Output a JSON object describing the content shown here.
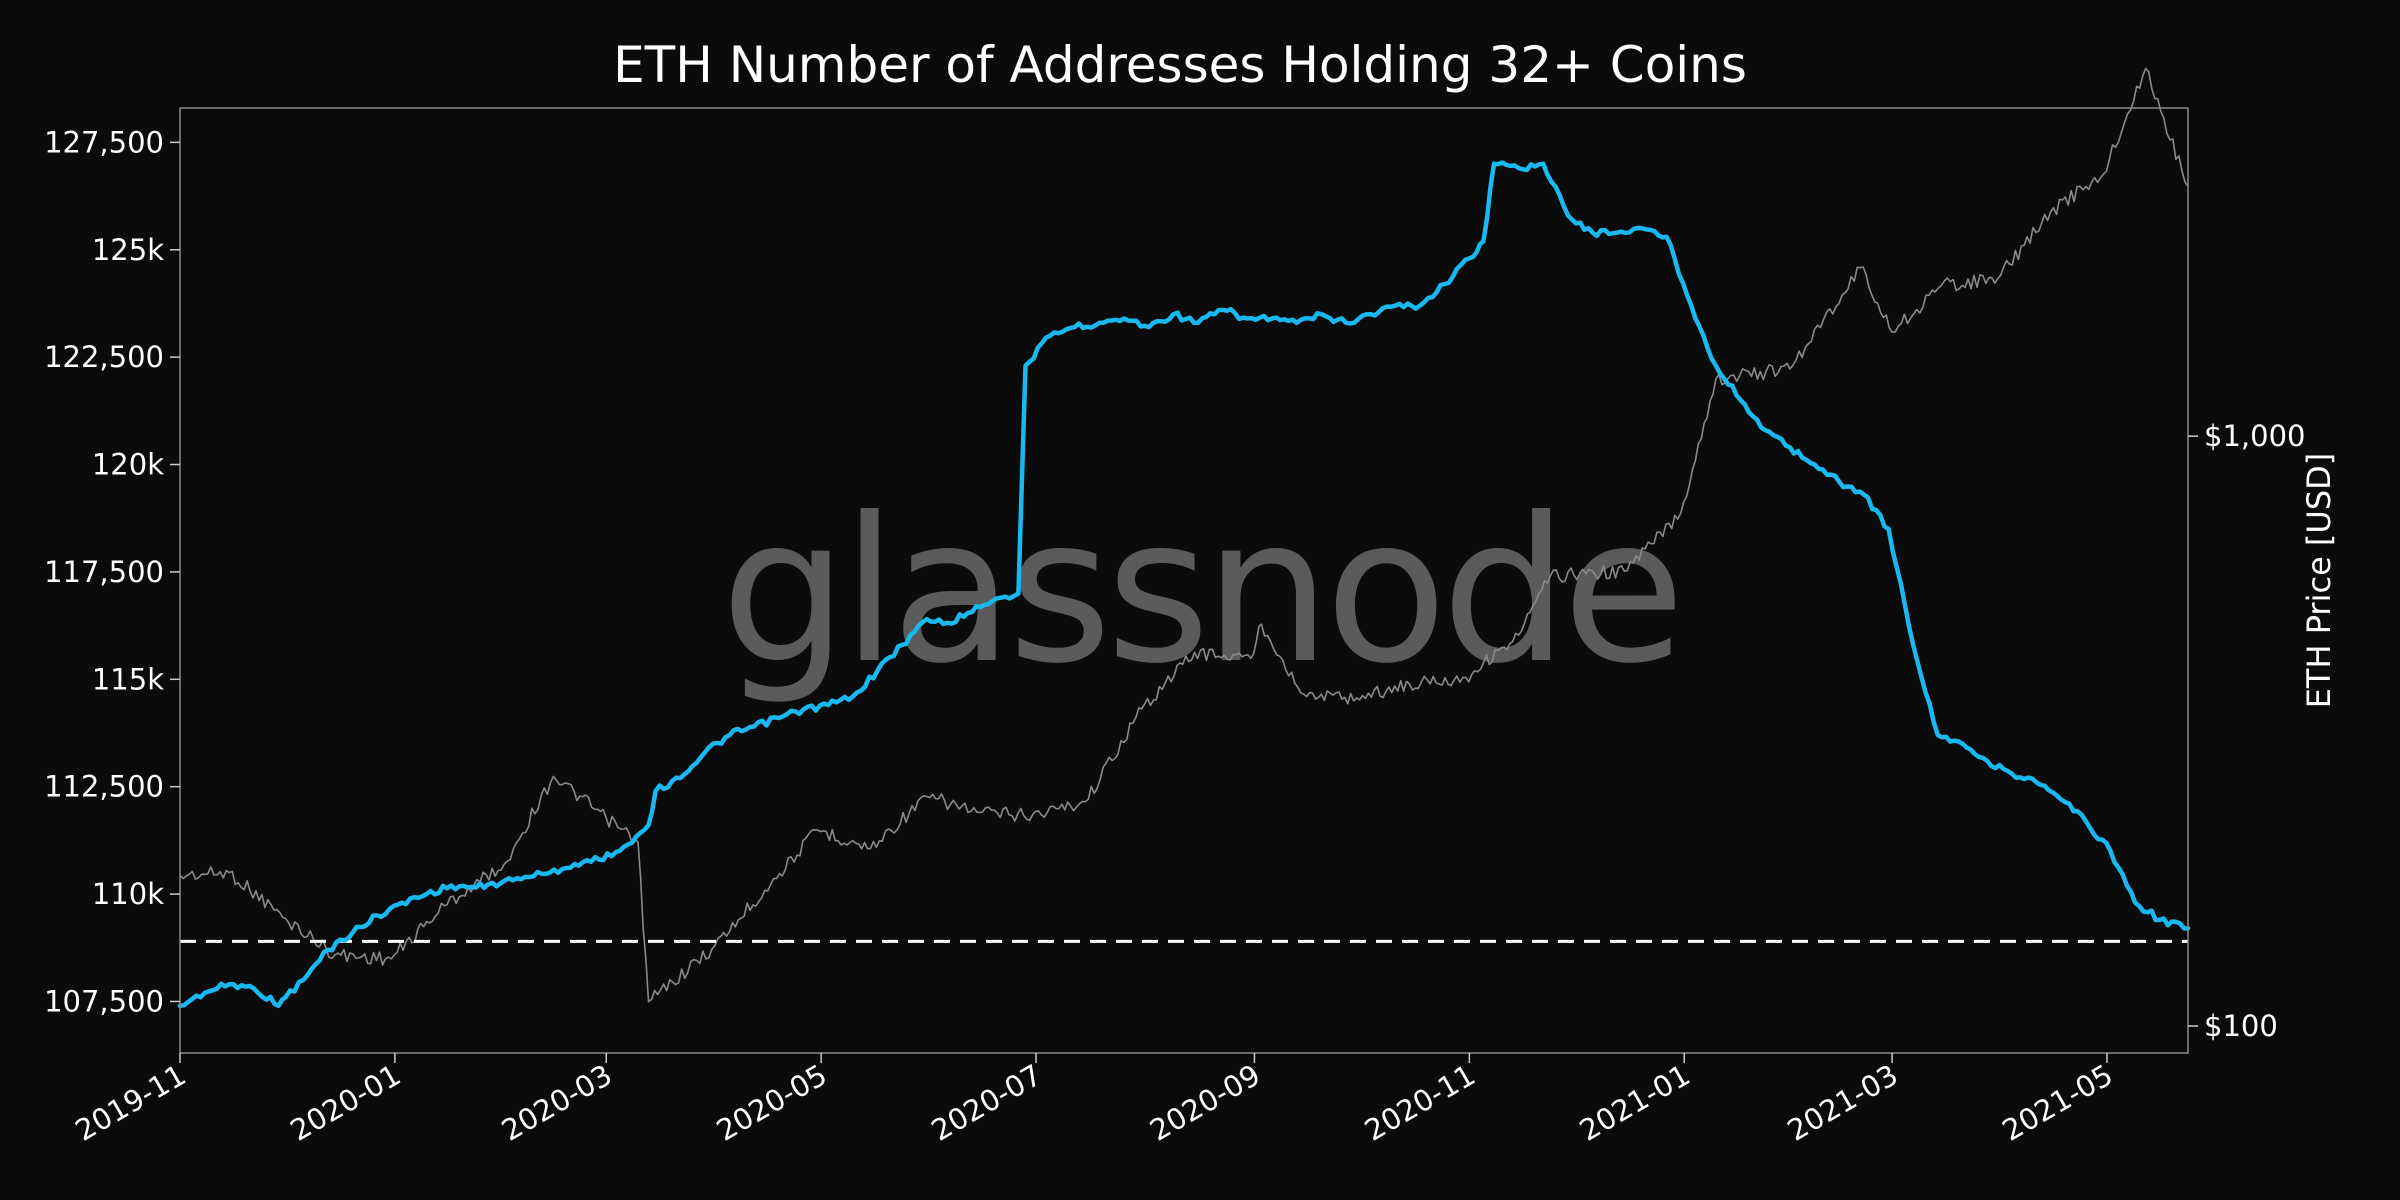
{
  "chart_data": {
    "type": "line",
    "title": "ETH Number of Addresses Holding 32+ Coins",
    "watermark": "glassnode",
    "ylabel_right": "ETH Price [USD]",
    "x_ticks": [
      "2019-11",
      "2020-01",
      "2020-03",
      "2020-05",
      "2020-07",
      "2020-09",
      "2020-11",
      "2021-01",
      "2021-03",
      "2021-05"
    ],
    "x_range": [
      "2019-11-01",
      "2021-05-24"
    ],
    "y_left": {
      "range": [
        106300,
        128300
      ],
      "ticks": [
        {
          "value": 107500,
          "label": "107,500"
        },
        {
          "value": 110000,
          "label": "110k"
        },
        {
          "value": 112500,
          "label": "112,500"
        },
        {
          "value": 115000,
          "label": "115k"
        },
        {
          "value": 117500,
          "label": "117,500"
        },
        {
          "value": 120000,
          "label": "120k"
        },
        {
          "value": 122500,
          "label": "122,500"
        },
        {
          "value": 125000,
          "label": "125k"
        },
        {
          "value": 127500,
          "label": "127,500"
        }
      ]
    },
    "y_right": {
      "scale": "log",
      "range": [
        90,
        3600
      ],
      "ticks": [
        {
          "value": 100,
          "label": "$100"
        },
        {
          "value": 1000,
          "label": "$1,000"
        }
      ]
    },
    "reference_line": {
      "value": 108900,
      "style": "dashed",
      "color": "#ffffff"
    },
    "colors": {
      "addresses": "#1ab8f0",
      "price": "#8a8a8a",
      "background": "#0b0b0b",
      "frame": "#8a8a8a"
    },
    "series": [
      {
        "axis": "left",
        "x": [
          "2019-11-01",
          "2019-11-08",
          "2019-11-15",
          "2019-11-22",
          "2019-11-29",
          "2019-12-01",
          "2019-12-06",
          "2019-12-13",
          "2019-12-20",
          "2019-12-27",
          "2020-01-03",
          "2020-01-10",
          "2020-01-17",
          "2020-01-24",
          "2020-01-31",
          "2020-02-07",
          "2020-02-14",
          "2020-02-21",
          "2020-02-28",
          "2020-03-06",
          "2020-03-13",
          "2020-03-15",
          "2020-03-22",
          "2020-03-29",
          "2020-04-05",
          "2020-04-12",
          "2020-04-19",
          "2020-04-26",
          "2020-05-03",
          "2020-05-10",
          "2020-05-17",
          "2020-05-24",
          "2020-05-31",
          "2020-06-07",
          "2020-06-14",
          "2020-06-21",
          "2020-06-26",
          "2020-06-28",
          "2020-07-05",
          "2020-07-12",
          "2020-07-19",
          "2020-07-26",
          "2020-08-02",
          "2020-08-09",
          "2020-08-16",
          "2020-08-23",
          "2020-08-30",
          "2020-09-06",
          "2020-09-13",
          "2020-09-20",
          "2020-09-27",
          "2020-10-04",
          "2020-10-11",
          "2020-10-18",
          "2020-10-25",
          "2020-11-01",
          "2020-11-05",
          "2020-11-08",
          "2020-11-15",
          "2020-11-22",
          "2020-11-29",
          "2020-12-06",
          "2020-12-13",
          "2020-12-20",
          "2020-12-27",
          "2021-01-03",
          "2021-01-10",
          "2021-01-17",
          "2021-01-24",
          "2021-01-31",
          "2021-02-07",
          "2021-02-14",
          "2021-02-21",
          "2021-02-28",
          "2021-03-07",
          "2021-03-14",
          "2021-03-21",
          "2021-03-28",
          "2021-04-04",
          "2021-04-11",
          "2021-04-18",
          "2021-04-25",
          "2021-05-02",
          "2021-05-09",
          "2021-05-16",
          "2021-05-24"
        ],
        "values": [
          107400,
          107700,
          107900,
          107800,
          107400,
          107600,
          108000,
          108700,
          109100,
          109500,
          109800,
          110000,
          110200,
          110150,
          110250,
          110400,
          110500,
          110700,
          110800,
          111100,
          111600,
          112400,
          112700,
          113300,
          113700,
          113900,
          114100,
          114300,
          114400,
          114600,
          115200,
          115800,
          116400,
          116300,
          116700,
          116900,
          117000,
          122300,
          123000,
          123200,
          123300,
          123400,
          123200,
          123500,
          123300,
          123600,
          123400,
          123400,
          123300,
          123500,
          123300,
          123500,
          123700,
          123700,
          124200,
          124800,
          125200,
          127000,
          126900,
          127000,
          125800,
          125400,
          125400,
          125500,
          125300,
          123700,
          122300,
          121500,
          120800,
          120400,
          120000,
          119600,
          119300,
          118500,
          115800,
          113700,
          113500,
          113100,
          112800,
          112600,
          112200,
          111700,
          111000,
          109800,
          109400,
          109200
        ]
      },
      {
        "axis": "right",
        "x": [
          "2019-11-01",
          "2019-11-15",
          "2019-12-01",
          "2019-12-15",
          "2019-12-31",
          "2020-01-15",
          "2020-02-01",
          "2020-02-15",
          "2020-03-01",
          "2020-03-10",
          "2020-03-13",
          "2020-03-31",
          "2020-04-15",
          "2020-04-30",
          "2020-05-15",
          "2020-05-31",
          "2020-06-15",
          "2020-06-30",
          "2020-07-15",
          "2020-07-31",
          "2020-08-15",
          "2020-08-31",
          "2020-09-03",
          "2020-09-15",
          "2020-09-30",
          "2020-10-15",
          "2020-10-31",
          "2020-11-15",
          "2020-11-24",
          "2020-12-15",
          "2020-12-31",
          "2021-01-10",
          "2021-01-31",
          "2021-02-20",
          "2021-03-01",
          "2021-03-15",
          "2021-03-31",
          "2021-04-15",
          "2021-04-30",
          "2021-05-12",
          "2021-05-24"
        ],
        "values": [
          180,
          182,
          152,
          132,
          130,
          160,
          188,
          265,
          225,
          205,
          110,
          135,
          170,
          215,
          200,
          245,
          230,
          228,
          240,
          345,
          430,
          420,
          480,
          365,
          360,
          380,
          390,
          460,
          580,
          590,
          740,
          1250,
          1300,
          1930,
          1500,
          1800,
          1850,
          2400,
          2780,
          4200,
          2650
        ]
      }
    ]
  }
}
